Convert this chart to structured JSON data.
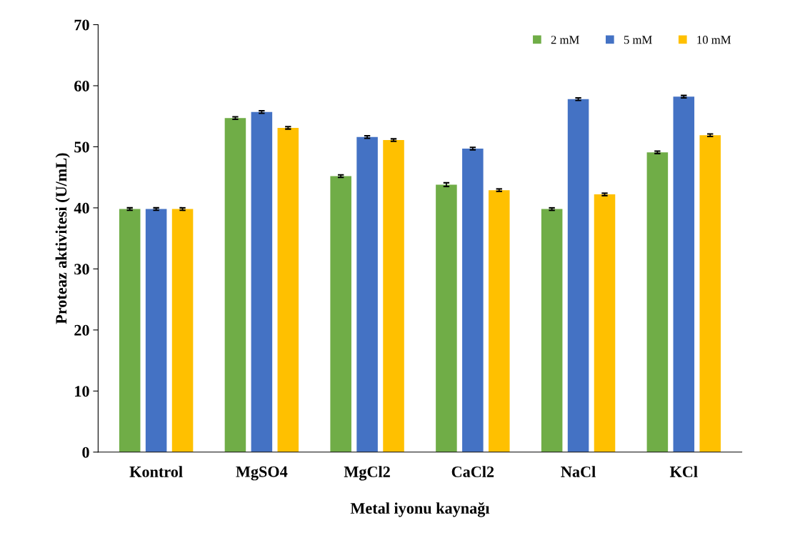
{
  "chart_data": {
    "type": "bar",
    "xlabel": "Metal iyonu kaynağı",
    "ylabel": "Proteaz aktivitesi (U/mL)",
    "categories": [
      "Kontrol",
      "MgSO4",
      "MgCl2",
      "CaCl2",
      "NaCl",
      "KCl"
    ],
    "series": [
      {
        "name": "2 mM",
        "color": "#70ad47",
        "values": [
          39.8,
          54.7,
          45.2,
          43.8,
          39.8,
          49.1
        ],
        "errors": [
          0.2,
          0.2,
          0.2,
          0.3,
          0.2,
          0.2
        ]
      },
      {
        "name": "5 mM",
        "color": "#4472c4",
        "values": [
          39.8,
          55.7,
          51.6,
          49.7,
          57.8,
          58.2
        ],
        "errors": [
          0.2,
          0.2,
          0.2,
          0.2,
          0.2,
          0.2
        ]
      },
      {
        "name": "10 mM",
        "color": "#ffc000",
        "values": [
          39.8,
          53.1,
          51.1,
          42.9,
          42.2,
          51.9
        ],
        "errors": [
          0.2,
          0.2,
          0.2,
          0.2,
          0.2,
          0.2
        ]
      }
    ],
    "ylim": [
      0,
      70
    ],
    "yticks": [
      0,
      10,
      20,
      30,
      40,
      50,
      60,
      70
    ],
    "grid": false,
    "legend": "top right"
  }
}
